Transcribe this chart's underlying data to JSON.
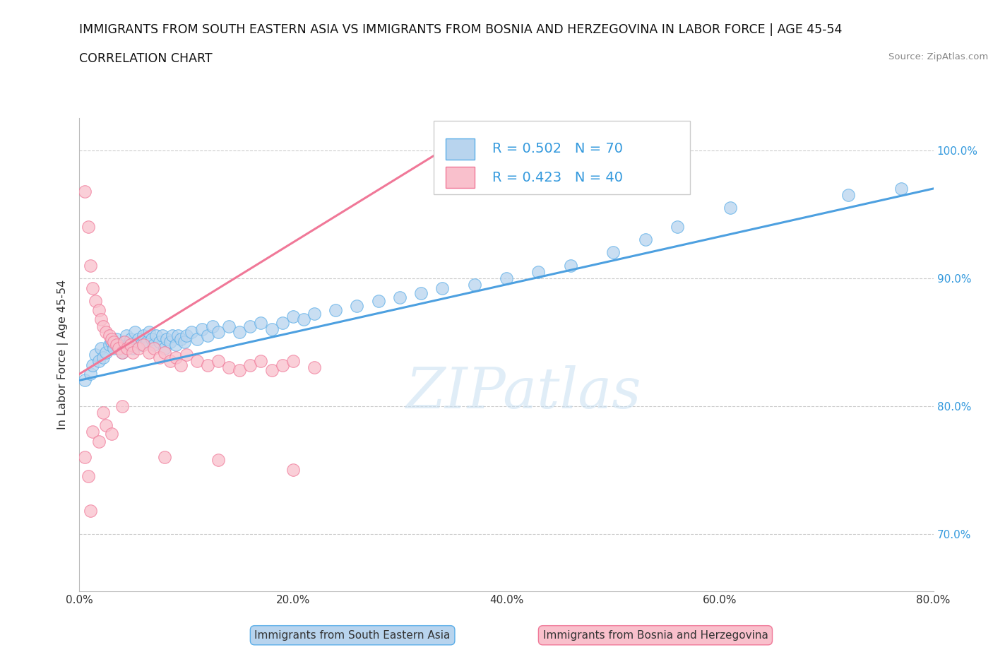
{
  "title": "IMMIGRANTS FROM SOUTH EASTERN ASIA VS IMMIGRANTS FROM BOSNIA AND HERZEGOVINA IN LABOR FORCE | AGE 45-54",
  "subtitle": "CORRELATION CHART",
  "source": "Source: ZipAtlas.com",
  "ylabel": "In Labor Force | Age 45-54",
  "xmin": 0.0,
  "xmax": 0.8,
  "ymin": 0.655,
  "ymax": 1.025,
  "yticks": [
    0.7,
    0.8,
    0.9,
    1.0
  ],
  "ytick_labels": [
    "70.0%",
    "80.0%",
    "90.0%",
    "100.0%"
  ],
  "xticks": [
    0.0,
    0.2,
    0.4,
    0.6,
    0.8
  ],
  "xtick_labels": [
    "0.0%",
    "20.0%",
    "40.0%",
    "60.0%",
    "80.0%"
  ],
  "blue_fill": "#b8d4ee",
  "pink_fill": "#f9c0cc",
  "blue_edge": "#5baee8",
  "pink_edge": "#f07898",
  "blue_line": "#4da0e0",
  "pink_line": "#f07898",
  "legend_text_color": "#3399dd",
  "r_blue": 0.502,
  "n_blue": 70,
  "r_pink": 0.423,
  "n_pink": 40,
  "watermark": "ZIPatlas",
  "blue_x": [
    0.005,
    0.01,
    0.012,
    0.015,
    0.018,
    0.02,
    0.022,
    0.025,
    0.028,
    0.03,
    0.032,
    0.035,
    0.037,
    0.04,
    0.042,
    0.044,
    0.046,
    0.048,
    0.05,
    0.052,
    0.055,
    0.058,
    0.06,
    0.063,
    0.065,
    0.068,
    0.07,
    0.072,
    0.075,
    0.078,
    0.08,
    0.082,
    0.085,
    0.087,
    0.09,
    0.092,
    0.095,
    0.098,
    0.1,
    0.105,
    0.11,
    0.115,
    0.12,
    0.125,
    0.13,
    0.14,
    0.15,
    0.16,
    0.17,
    0.18,
    0.19,
    0.2,
    0.21,
    0.22,
    0.24,
    0.26,
    0.28,
    0.3,
    0.32,
    0.34,
    0.37,
    0.4,
    0.43,
    0.46,
    0.5,
    0.53,
    0.56,
    0.61,
    0.72,
    0.77
  ],
  "blue_y": [
    0.82,
    0.825,
    0.832,
    0.84,
    0.835,
    0.845,
    0.838,
    0.842,
    0.848,
    0.85,
    0.845,
    0.852,
    0.848,
    0.842,
    0.85,
    0.855,
    0.848,
    0.852,
    0.845,
    0.858,
    0.852,
    0.848,
    0.855,
    0.85,
    0.858,
    0.852,
    0.848,
    0.855,
    0.85,
    0.855,
    0.845,
    0.852,
    0.85,
    0.855,
    0.848,
    0.855,
    0.852,
    0.85,
    0.855,
    0.858,
    0.852,
    0.86,
    0.855,
    0.862,
    0.858,
    0.862,
    0.858,
    0.862,
    0.865,
    0.86,
    0.865,
    0.87,
    0.868,
    0.872,
    0.875,
    0.878,
    0.882,
    0.885,
    0.888,
    0.892,
    0.895,
    0.9,
    0.905,
    0.91,
    0.92,
    0.93,
    0.94,
    0.955,
    0.965,
    0.97
  ],
  "pink_x": [
    0.005,
    0.008,
    0.01,
    0.012,
    0.015,
    0.018,
    0.02,
    0.022,
    0.025,
    0.028,
    0.03,
    0.032,
    0.035,
    0.037,
    0.04,
    0.042,
    0.045,
    0.048,
    0.05,
    0.055,
    0.06,
    0.065,
    0.07,
    0.075,
    0.08,
    0.085,
    0.09,
    0.095,
    0.1,
    0.11,
    0.12,
    0.13,
    0.14,
    0.15,
    0.16,
    0.17,
    0.18,
    0.19,
    0.2,
    0.22
  ],
  "pink_y": [
    0.968,
    0.94,
    0.91,
    0.892,
    0.882,
    0.875,
    0.868,
    0.862,
    0.858,
    0.855,
    0.852,
    0.85,
    0.848,
    0.845,
    0.842,
    0.85,
    0.845,
    0.848,
    0.842,
    0.845,
    0.848,
    0.842,
    0.845,
    0.838,
    0.842,
    0.835,
    0.838,
    0.832,
    0.84,
    0.835,
    0.832,
    0.835,
    0.83,
    0.828,
    0.832,
    0.835,
    0.828,
    0.832,
    0.835,
    0.83
  ],
  "pink_outliers_x": [
    0.005,
    0.008,
    0.01,
    0.012,
    0.018,
    0.022,
    0.025,
    0.03,
    0.04,
    0.08,
    0.13,
    0.2
  ],
  "pink_outliers_y": [
    0.76,
    0.745,
    0.718,
    0.78,
    0.772,
    0.795,
    0.785,
    0.778,
    0.8,
    0.76,
    0.758,
    0.75
  ]
}
